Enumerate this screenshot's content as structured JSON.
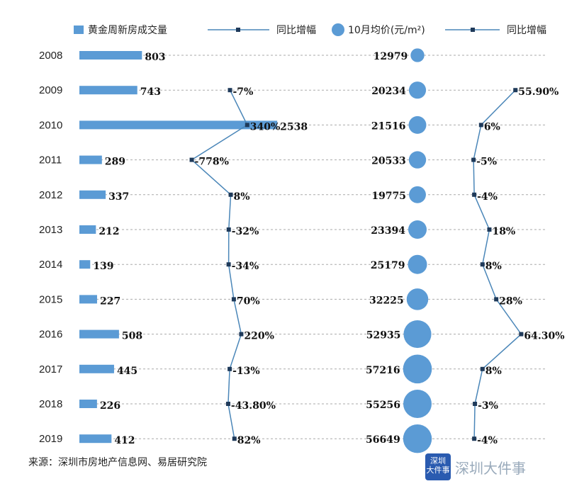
{
  "chart_data": {
    "type": "bar",
    "categories": [
      "2008",
      "2009",
      "2010",
      "2011",
      "2012",
      "2013",
      "2014",
      "2015",
      "2016",
      "2017",
      "2018",
      "2019"
    ],
    "series": [
      {
        "name": "黄金周新房成交量",
        "type": "bar",
        "values": [
          803,
          743,
          2538,
          289,
          337,
          212,
          139,
          227,
          508,
          445,
          226,
          412
        ],
        "labels": [
          "803",
          "743",
          "2538",
          "289",
          "337",
          "212",
          "139",
          "227",
          "508",
          "445",
          "226",
          "412"
        ]
      },
      {
        "name": "同比增幅",
        "type": "line",
        "values": [
          null,
          -7,
          340,
          -778,
          8,
          -32,
          -34,
          70,
          220,
          -13,
          -43.8,
          82
        ],
        "labels": [
          "",
          "-7%",
          "340%",
          "-778%",
          "8%",
          "-32%",
          "-34%",
          "70%",
          "220%",
          "-13%",
          "-43.80%",
          "82%"
        ]
      },
      {
        "name": "10月均价(元/m²)",
        "type": "bubble",
        "values": [
          12979,
          20234,
          21516,
          20533,
          19775,
          23394,
          25179,
          32225,
          52935,
          57216,
          55256,
          56649
        ],
        "labels": [
          "12979",
          "20234",
          "21516",
          "20533",
          "19775",
          "23394",
          "25179",
          "32225",
          "52935",
          "57216",
          "55256",
          "56649"
        ]
      },
      {
        "name": "同比增幅",
        "type": "line",
        "values": [
          null,
          55.9,
          6,
          -5,
          -4,
          18,
          8,
          28,
          64.3,
          8,
          -3,
          -4
        ],
        "labels": [
          "",
          "55.90%",
          "6%",
          "-5%",
          "-4%",
          "18%",
          "8%",
          "28%",
          "64.30%",
          "8%",
          "-3%",
          "-4%"
        ]
      }
    ],
    "colors": {
      "bar": "#5b9bd5",
      "line": "#4a86b8",
      "marker": "#1f3a5a",
      "grid": "#aaaaaa"
    },
    "grid": true,
    "legend_position": "top"
  },
  "source": "来源：深圳市房地产信息网、易居研究院",
  "brand": {
    "logo_text": "深圳大件事",
    "name": "深圳大件事"
  }
}
